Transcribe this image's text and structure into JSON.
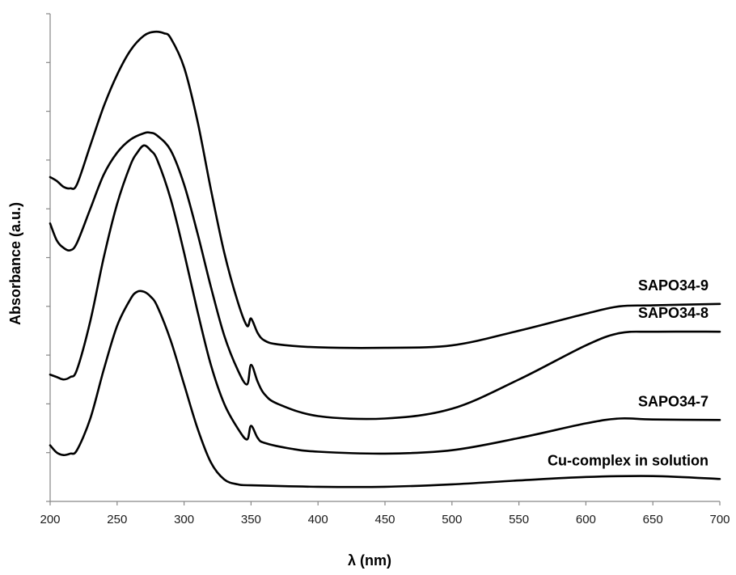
{
  "chart_data": {
    "type": "line",
    "title": "",
    "xlabel": "λ (nm)",
    "ylabel": "Absorbance (a.u.)",
    "xlim": [
      200,
      700
    ],
    "ylim": [
      0,
      10
    ],
    "x_ticks": [
      "200",
      "250",
      "300",
      "350",
      "400",
      "450",
      "500",
      "550",
      "600",
      "650",
      "700"
    ],
    "y_tick_count": 10,
    "y_tick_labels_shown": false,
    "grid": false,
    "legend": "none",
    "line_color": "#000000",
    "series": [
      {
        "name": "SAPO34-9",
        "points": [
          [
            200,
            6.65
          ],
          [
            205,
            6.57
          ],
          [
            210,
            6.45
          ],
          [
            215,
            6.42
          ],
          [
            220,
            6.5
          ],
          [
            230,
            7.3
          ],
          [
            240,
            8.1
          ],
          [
            250,
            8.75
          ],
          [
            260,
            9.25
          ],
          [
            270,
            9.55
          ],
          [
            278,
            9.63
          ],
          [
            285,
            9.6
          ],
          [
            290,
            9.5
          ],
          [
            300,
            8.9
          ],
          [
            310,
            7.8
          ],
          [
            320,
            6.4
          ],
          [
            330,
            5.1
          ],
          [
            340,
            4.1
          ],
          [
            347,
            3.6
          ],
          [
            350,
            3.75
          ],
          [
            355,
            3.45
          ],
          [
            360,
            3.3
          ],
          [
            370,
            3.22
          ],
          [
            400,
            3.16
          ],
          [
            450,
            3.15
          ],
          [
            500,
            3.2
          ],
          [
            550,
            3.5
          ],
          [
            600,
            3.85
          ],
          [
            625,
            4.0
          ],
          [
            650,
            4.02
          ],
          [
            700,
            4.05
          ]
        ]
      },
      {
        "name": "SAPO34-8",
        "points": [
          [
            200,
            5.7
          ],
          [
            205,
            5.35
          ],
          [
            210,
            5.2
          ],
          [
            215,
            5.15
          ],
          [
            220,
            5.3
          ],
          [
            230,
            6.0
          ],
          [
            240,
            6.7
          ],
          [
            250,
            7.15
          ],
          [
            260,
            7.42
          ],
          [
            270,
            7.55
          ],
          [
            275,
            7.56
          ],
          [
            280,
            7.5
          ],
          [
            290,
            7.2
          ],
          [
            300,
            6.5
          ],
          [
            310,
            5.5
          ],
          [
            320,
            4.4
          ],
          [
            330,
            3.4
          ],
          [
            340,
            2.7
          ],
          [
            347,
            2.4
          ],
          [
            350,
            2.8
          ],
          [
            355,
            2.45
          ],
          [
            360,
            2.2
          ],
          [
            370,
            2.0
          ],
          [
            400,
            1.75
          ],
          [
            450,
            1.7
          ],
          [
            500,
            1.9
          ],
          [
            550,
            2.5
          ],
          [
            600,
            3.2
          ],
          [
            625,
            3.45
          ],
          [
            650,
            3.48
          ],
          [
            700,
            3.48
          ]
        ]
      },
      {
        "name": "SAPO34-7",
        "points": [
          [
            200,
            2.6
          ],
          [
            205,
            2.55
          ],
          [
            210,
            2.5
          ],
          [
            215,
            2.55
          ],
          [
            220,
            2.7
          ],
          [
            230,
            3.7
          ],
          [
            240,
            5.0
          ],
          [
            250,
            6.1
          ],
          [
            260,
            6.9
          ],
          [
            265,
            7.15
          ],
          [
            270,
            7.3
          ],
          [
            275,
            7.2
          ],
          [
            280,
            7.0
          ],
          [
            290,
            6.2
          ],
          [
            300,
            5.1
          ],
          [
            310,
            3.9
          ],
          [
            320,
            2.8
          ],
          [
            330,
            2.0
          ],
          [
            340,
            1.5
          ],
          [
            347,
            1.27
          ],
          [
            350,
            1.55
          ],
          [
            355,
            1.3
          ],
          [
            360,
            1.2
          ],
          [
            380,
            1.08
          ],
          [
            400,
            1.02
          ],
          [
            450,
            0.98
          ],
          [
            500,
            1.05
          ],
          [
            550,
            1.3
          ],
          [
            600,
            1.6
          ],
          [
            625,
            1.7
          ],
          [
            650,
            1.68
          ],
          [
            700,
            1.67
          ]
        ]
      },
      {
        "name": "Cu-complex in solution",
        "points": [
          [
            200,
            1.15
          ],
          [
            205,
            1.0
          ],
          [
            210,
            0.95
          ],
          [
            215,
            0.98
          ],
          [
            220,
            1.05
          ],
          [
            230,
            1.7
          ],
          [
            240,
            2.7
          ],
          [
            250,
            3.6
          ],
          [
            260,
            4.15
          ],
          [
            265,
            4.3
          ],
          [
            270,
            4.3
          ],
          [
            275,
            4.2
          ],
          [
            280,
            4.0
          ],
          [
            290,
            3.3
          ],
          [
            300,
            2.4
          ],
          [
            310,
            1.5
          ],
          [
            320,
            0.8
          ],
          [
            330,
            0.45
          ],
          [
            340,
            0.35
          ],
          [
            350,
            0.33
          ],
          [
            400,
            0.3
          ],
          [
            450,
            0.3
          ],
          [
            500,
            0.35
          ],
          [
            550,
            0.43
          ],
          [
            600,
            0.5
          ],
          [
            650,
            0.52
          ],
          [
            700,
            0.46
          ]
        ]
      }
    ]
  }
}
